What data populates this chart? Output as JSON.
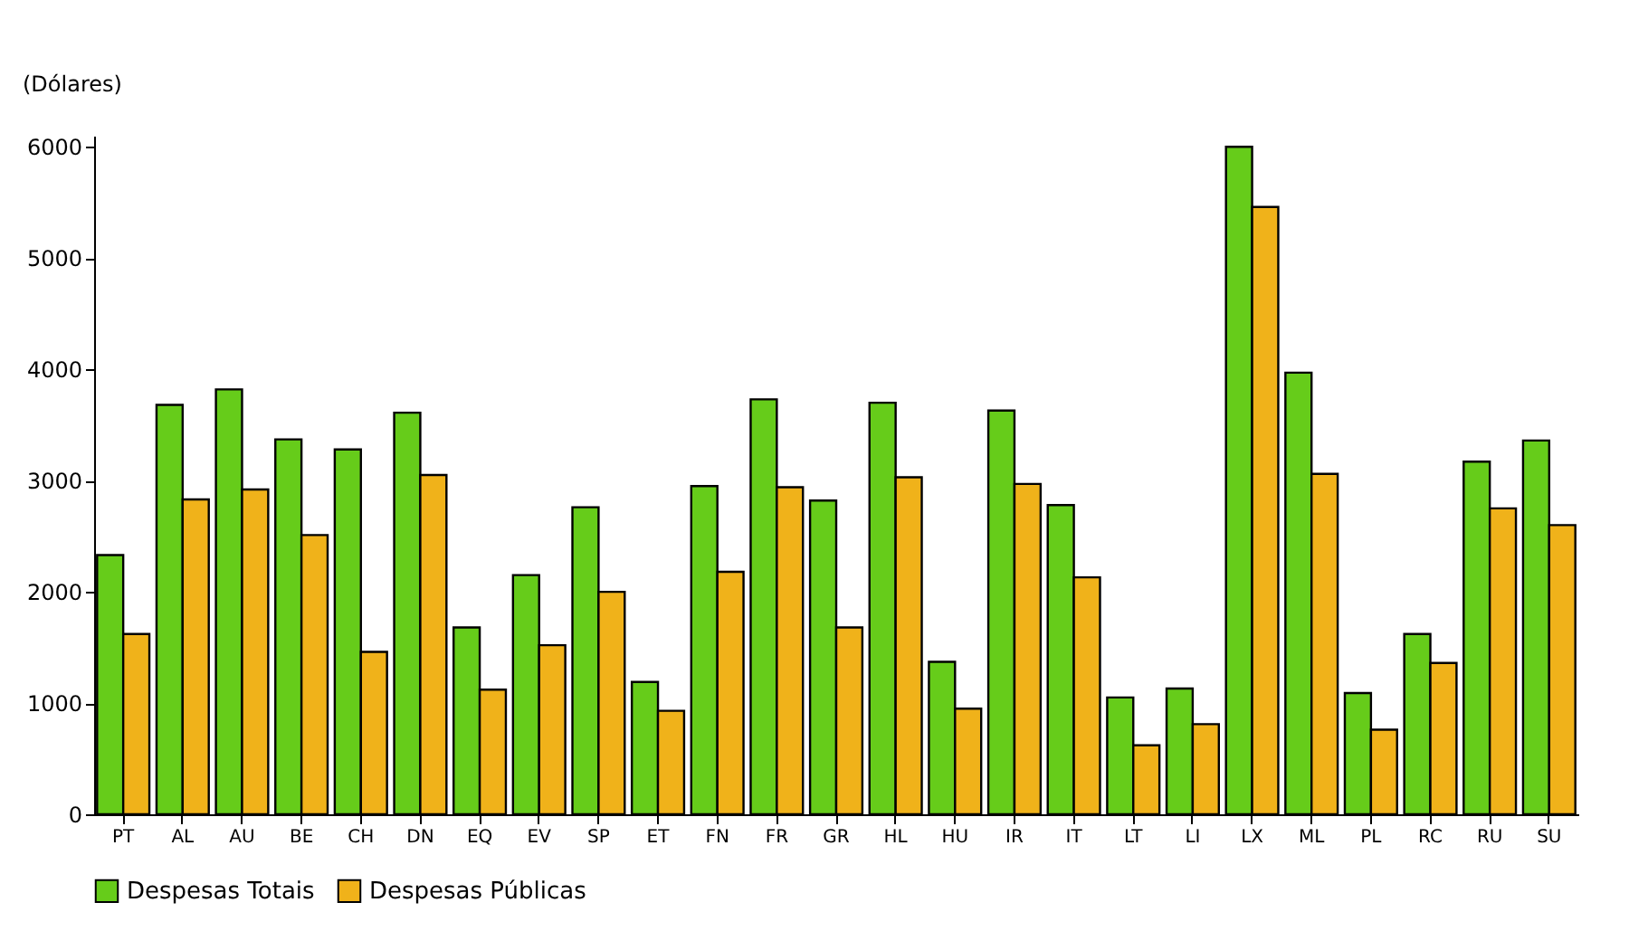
{
  "chart_data": {
    "type": "bar",
    "ylabel": "(Dólares)",
    "categories": [
      "PT",
      "AL",
      "AU",
      "BE",
      "CH",
      "DN",
      "EQ",
      "EV",
      "SP",
      "ET",
      "FN",
      "FR",
      "GR",
      "HL",
      "HU",
      "IR",
      "IT",
      "LT",
      "LI",
      "LX",
      "ML",
      "PL",
      "RC",
      "RU",
      "SU"
    ],
    "series": [
      {
        "name": "Despesas Totais",
        "color": "#66cc1a",
        "values": [
          2330,
          3680,
          3820,
          3370,
          3280,
          3610,
          1680,
          2150,
          2760,
          1190,
          2950,
          3730,
          2820,
          3700,
          1370,
          3630,
          2780,
          1050,
          1130,
          6000,
          3970,
          1090,
          1620,
          3170,
          3360
        ]
      },
      {
        "name": "Despesas Públicas",
        "color": "#f0b21a",
        "values": [
          1620,
          2830,
          2920,
          2510,
          1460,
          3050,
          1120,
          1520,
          2000,
          930,
          2180,
          2940,
          1680,
          3030,
          950,
          2970,
          2130,
          620,
          810,
          5460,
          3060,
          760,
          1360,
          2750,
          2600
        ]
      }
    ],
    "ylim": [
      0,
      6100
    ],
    "yticks": [
      0,
      1000,
      2000,
      3000,
      4000,
      5000,
      6000
    ],
    "grid": false,
    "legend": "bottom"
  }
}
